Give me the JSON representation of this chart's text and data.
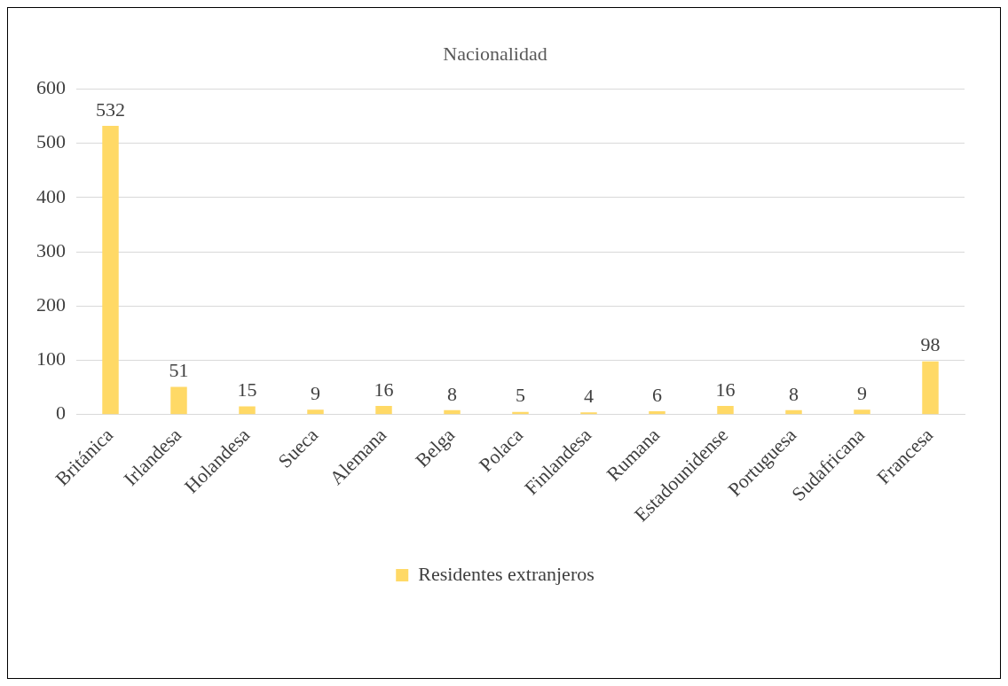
{
  "chart_data": {
    "type": "bar",
    "title": "Nacionalidad",
    "categories": [
      "Británica",
      "Irlandesa",
      "Holandesa",
      "Sueca",
      "Alemana",
      "Belga",
      "Polaca",
      "Finlandesa",
      "Rumana",
      "Estadounidense",
      "Portuguesa",
      "Sudafricana",
      "Francesa"
    ],
    "series": [
      {
        "name": "Residentes extranjeros",
        "color": "#ffd966",
        "values": [
          532,
          51,
          15,
          9,
          16,
          8,
          5,
          4,
          6,
          16,
          8,
          9,
          98
        ]
      }
    ],
    "ylim": [
      0,
      600
    ],
    "yticks": [
      0,
      100,
      200,
      300,
      400,
      500,
      600
    ],
    "grid": "y",
    "legend": "bottom",
    "data_labels": true
  }
}
